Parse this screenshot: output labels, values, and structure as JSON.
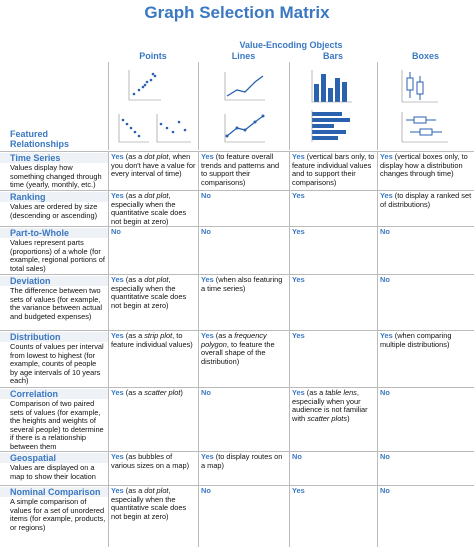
{
  "header": {
    "title": "Graph Selection Matrix",
    "group": "Value-Encoding Objects",
    "row_header": "Featured Relationships",
    "columns": [
      "Points",
      "Lines",
      "Bars",
      "Boxes"
    ]
  },
  "rows": [
    {
      "title": "Time Series",
      "description": "Values display how something changed through time (yearly, monthly, etc.)",
      "cells": [
        {
          "answer": "Yes",
          "note": [
            "(as a ",
            "dot plot",
            ", when you don't have a value for every interval of time)"
          ]
        },
        {
          "answer": "Yes",
          "note": [
            "(to feature overall trends and patterns and to support their comparisons)"
          ]
        },
        {
          "answer": "Yes",
          "note": [
            "(vertical bars only, to feature individual values and to support their comparisons)"
          ]
        },
        {
          "answer": "Yes",
          "note": [
            "(vertical boxes only, to display how a distribution changes through time)"
          ]
        }
      ]
    },
    {
      "title": "Ranking",
      "description": "Values are ordered by size (descending or ascending)",
      "cells": [
        {
          "answer": "Yes",
          "note": [
            "(as a ",
            "dot plot",
            ", especially when the quantitative scale does not begin at zero)"
          ]
        },
        {
          "answer": "No",
          "note": []
        },
        {
          "answer": "Yes",
          "note": []
        },
        {
          "answer": "Yes",
          "note": [
            "(to display a ranked set of distributions)"
          ]
        }
      ]
    },
    {
      "title": "Part-to-Whole",
      "description": "Values represent parts (proportions) of a whole (for example, regional portions of total sales)",
      "cells": [
        {
          "answer": "No",
          "note": []
        },
        {
          "answer": "No",
          "note": []
        },
        {
          "answer": "Yes",
          "note": []
        },
        {
          "answer": "No",
          "note": []
        }
      ]
    },
    {
      "title": "Deviation",
      "description": "The difference between two sets of values (for example, the variance between actual and budgeted expenses)",
      "cells": [
        {
          "answer": "Yes",
          "note": [
            "(as a ",
            "dot plot",
            ", especially when the quantitative scale does not begin at zero)"
          ]
        },
        {
          "answer": "Yes",
          "note": [
            "(when also featuring a time series)"
          ]
        },
        {
          "answer": "Yes",
          "note": []
        },
        {
          "answer": "No",
          "note": []
        }
      ]
    },
    {
      "title": "Distribution",
      "description": "Counts of values per interval from lowest to highest (for example, counts of people by age intervals of 10 years each)",
      "cells": [
        {
          "answer": "Yes",
          "note": [
            "(as a ",
            "strip plot",
            ", to feature individual values)"
          ]
        },
        {
          "answer": "Yes",
          "note": [
            "(as a ",
            "frequency polygon",
            ", to feature the overall shape of the distribution)"
          ]
        },
        {
          "answer": "Yes",
          "note": []
        },
        {
          "answer": "Yes",
          "note": [
            "(when comparing multiple distributions)"
          ]
        }
      ]
    },
    {
      "title": "Correlation",
      "description": "Comparison of two paired sets of values (for example, the heights and weights of several people) to determine if there is a relationship between them",
      "cells": [
        {
          "answer": "Yes",
          "note": [
            "(as a ",
            "scatter plot",
            ")"
          ]
        },
        {
          "answer": "No",
          "note": []
        },
        {
          "answer": "Yes",
          "note": [
            "(as a ",
            "table lens",
            ", especially when your audience is not familiar with ",
            "scatter plots",
            ")"
          ]
        },
        {
          "answer": "No",
          "note": []
        }
      ]
    },
    {
      "title": "Geospatial",
      "description": "Values are displayed on a map to show their location",
      "cells": [
        {
          "answer": "Yes",
          "note": [
            "(as bubbles of various sizes on a map)"
          ]
        },
        {
          "answer": "Yes",
          "note": [
            "(to display routes on a map)"
          ]
        },
        {
          "answer": "No",
          "note": []
        },
        {
          "answer": "No",
          "note": []
        }
      ]
    },
    {
      "title": "Nominal Comparison",
      "description": "A simple comparison of values for a set of unordered items (for example, products, or regions)",
      "cells": [
        {
          "answer": "Yes",
          "note": [
            "(as a ",
            "dot plot",
            ", especially when the quantitative scale does not begin at zero)"
          ]
        },
        {
          "answer": "No",
          "note": []
        },
        {
          "answer": "Yes",
          "note": []
        },
        {
          "answer": "No",
          "note": []
        }
      ]
    }
  ]
}
